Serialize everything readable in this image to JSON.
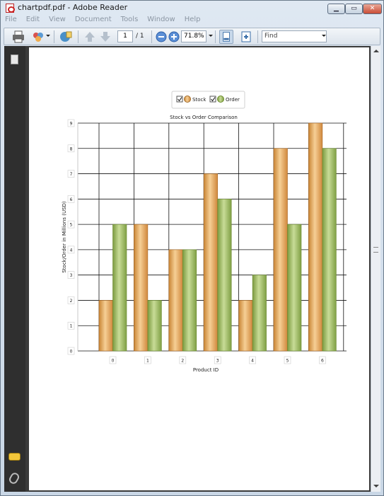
{
  "window": {
    "title": "chartpdf.pdf - Adobe Reader"
  },
  "menu": [
    "File",
    "Edit",
    "View",
    "Document",
    "Tools",
    "Window",
    "Help"
  ],
  "toolbar": {
    "page_current": "1",
    "page_total": "/ 1",
    "zoom": "71.8%",
    "find_placeholder": "Find"
  },
  "colors": {
    "stock": "#e6a55a",
    "order": "#9dbb61",
    "grid": "#111111",
    "page_bg": "#ffffff"
  },
  "chart_data": {
    "type": "bar",
    "title": "Stock vs Order Comparison",
    "xlabel": "Product ID",
    "ylabel": "Stock/Order in Millions (USD)",
    "categories": [
      "0",
      "1",
      "2",
      "3",
      "4",
      "5",
      "6"
    ],
    "series": [
      {
        "name": "Stock",
        "values": [
          2,
          5,
          4,
          7,
          2,
          8,
          9
        ]
      },
      {
        "name": "Order",
        "values": [
          5,
          2,
          4,
          6,
          3,
          5,
          8
        ]
      }
    ],
    "ylim": [
      0,
      9
    ],
    "yticks": [
      "0",
      "1",
      "2",
      "3",
      "4",
      "5",
      "6",
      "7",
      "8",
      "9"
    ],
    "grid": true,
    "legend": "top-center"
  }
}
